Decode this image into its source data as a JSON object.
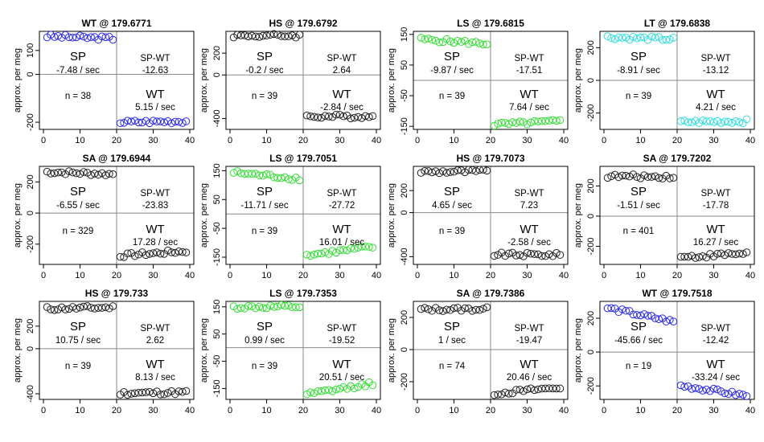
{
  "colors": {
    "blue": "#2a2ae6",
    "black": "#222222",
    "green": "#33dd33",
    "cyan": "#33dddd"
  },
  "panels": [
    {
      "title": "WT @ 179.6771",
      "ylabel": "approx. per meg",
      "color": "blue",
      "ylim": [
        -230,
        180
      ],
      "yticks": [
        -200,
        0,
        100
      ],
      "sp_label": "SP",
      "sp_rate": "-7.48 / sec",
      "diff_label": "SP-WT",
      "diff_value": "-12.63",
      "n_text": "n = 38",
      "wt_label": "WT",
      "wt_rate": "5.15 / sec",
      "sp_start": 160,
      "sp_slope": -0.5,
      "wt_start": -200,
      "wt_slope": 0.25
    },
    {
      "title": "HS @ 179.6792",
      "ylabel": "approx. per meg",
      "color": "black",
      "ylim": [
        -500,
        400
      ],
      "yticks": [
        -400,
        0,
        200
      ],
      "sp_label": "SP",
      "sp_rate": "-0.2 / sec",
      "diff_label": "SP-WT",
      "diff_value": "2.64",
      "n_text": "n = 39",
      "wt_label": "WT",
      "wt_rate": "-2.84 / sec",
      "sp_start": 360,
      "sp_slope": 0,
      "wt_start": -380,
      "wt_slope": -0.1
    },
    {
      "title": "LS @ 179.6815",
      "ylabel": "approx. per meg",
      "color": "green",
      "ylim": [
        -160,
        160
      ],
      "yticks": [
        -150,
        -50,
        50,
        150
      ],
      "sp_label": "SP",
      "sp_rate": "-9.87 / sec",
      "diff_label": "SP-WT",
      "diff_value": "-17.51",
      "n_text": "n = 39",
      "wt_label": "WT",
      "wt_rate": "7.64 / sec",
      "sp_start": 135,
      "sp_slope": -0.8,
      "wt_start": -145,
      "wt_slope": 0.6
    },
    {
      "title": "LT @ 179.6838",
      "ylabel": "approx. per meg",
      "color": "cyan",
      "ylim": [
        -300,
        300
      ],
      "yticks": [
        -200,
        0,
        200
      ],
      "sp_label": "SP",
      "sp_rate": "-8.91 / sec",
      "diff_label": "SP-WT",
      "diff_value": "-13.12",
      "n_text": "n = 39",
      "wt_label": "WT",
      "wt_rate": "4.21 / sec",
      "sp_start": 265,
      "sp_slope": -0.7,
      "wt_start": -255,
      "wt_slope": 0.3
    },
    {
      "title": "SA @ 179.6944",
      "ylabel": "approx. per meg",
      "color": "black",
      "ylim": [
        -330,
        300
      ],
      "yticks": [
        -200,
        0,
        200
      ],
      "sp_label": "SP",
      "sp_rate": "-6.55 / sec",
      "diff_label": "SP-WT",
      "diff_value": "-23.83",
      "n_text": "n = 329",
      "wt_label": "WT",
      "wt_rate": "17.28 / sec",
      "sp_start": 265,
      "sp_slope": -0.8,
      "wt_start": -275,
      "wt_slope": 1.6
    },
    {
      "title": "LS @ 179.7051",
      "ylabel": "approx. per meg",
      "color": "green",
      "ylim": [
        -175,
        165
      ],
      "yticks": [
        -150,
        -50,
        50,
        150
      ],
      "sp_label": "SP",
      "sp_rate": "-11.71 / sec",
      "diff_label": "SP-WT",
      "diff_value": "-27.72",
      "n_text": "n = 39",
      "wt_label": "WT",
      "wt_rate": "16.01 / sec",
      "sp_start": 145,
      "sp_slope": -1.2,
      "wt_start": -145,
      "wt_slope": 1.6
    },
    {
      "title": "HS @ 179.7073",
      "ylabel": "approx. per meg",
      "color": "black",
      "ylim": [
        -470,
        420
      ],
      "yticks": [
        -400,
        0,
        200
      ],
      "sp_label": "SP",
      "sp_rate": "4.65 / sec",
      "diff_label": "SP-WT",
      "diff_value": "7.23",
      "n_text": "n = 39",
      "wt_label": "WT",
      "wt_rate": "-2.58 / sec",
      "sp_start": 370,
      "sp_slope": 0.3,
      "wt_start": -380,
      "wt_slope": -0.2
    },
    {
      "title": "SA @ 179.7202",
      "ylabel": "approx. per meg",
      "color": "black",
      "ylim": [
        -320,
        330
      ],
      "yticks": [
        -200,
        0,
        200
      ],
      "sp_label": "SP",
      "sp_rate": "-1.51 / sec",
      "diff_label": "SP-WT",
      "diff_value": "-17.78",
      "n_text": "n = 401",
      "wt_label": "WT",
      "wt_rate": "16.27 / sec",
      "sp_start": 265,
      "sp_slope": -0.2,
      "wt_start": -275,
      "wt_slope": 1.6
    },
    {
      "title": "HS @ 179.733",
      "ylabel": "approx. per meg",
      "color": "black",
      "ylim": [
        -450,
        420
      ],
      "yticks": [
        -400,
        0,
        200
      ],
      "sp_label": "SP",
      "sp_rate": "10.75 / sec",
      "diff_label": "SP-WT",
      "diff_value": "2.62",
      "n_text": "n = 39",
      "wt_label": "WT",
      "wt_rate": "8.13 / sec",
      "sp_start": 355,
      "sp_slope": 0.6,
      "wt_start": -395,
      "wt_slope": 0.4
    },
    {
      "title": "LS @ 179.7353",
      "ylabel": "approx. per meg",
      "color": "green",
      "ylim": [
        -190,
        170
      ],
      "yticks": [
        -150,
        -50,
        50,
        150
      ],
      "sp_label": "SP",
      "sp_rate": "0.99 / sec",
      "diff_label": "SP-WT",
      "diff_value": "-19.52",
      "n_text": "n = 39",
      "wt_label": "WT",
      "wt_rate": "20.51 / sec",
      "sp_start": 148,
      "sp_slope": 0.1,
      "wt_start": -175,
      "wt_slope": 2.3
    },
    {
      "title": "SA @ 179.7386",
      "ylabel": "approx. per meg",
      "color": "black",
      "ylim": [
        -310,
        300
      ],
      "yticks": [
        -200,
        0,
        200
      ],
      "sp_label": "SP",
      "sp_rate": "1 / sec",
      "diff_label": "SP-WT",
      "diff_value": "-19.47",
      "n_text": "n = 74",
      "wt_label": "WT",
      "wt_rate": "20.46 / sec",
      "sp_start": 250,
      "sp_slope": 0.1,
      "wt_start": -275,
      "wt_slope": 2.1
    },
    {
      "title": "WT @ 179.7518",
      "ylabel": "approx. per meg",
      "color": "blue",
      "ylim": [
        -280,
        300
      ],
      "yticks": [
        -200,
        0,
        200
      ],
      "sp_label": "SP",
      "sp_rate": "-45.66 / sec",
      "diff_label": "SP-WT",
      "diff_value": "-12.42",
      "n_text": "n = 19",
      "wt_label": "WT",
      "wt_rate": "-33.24 / sec",
      "sp_start": 265,
      "sp_slope": -4.5,
      "wt_start": -195,
      "wt_slope": -3.3
    }
  ],
  "chart_data": {
    "type": "scatter",
    "xlim": [
      0,
      40
    ],
    "xticks": [
      0,
      10,
      20,
      30,
      40
    ],
    "grid": false,
    "layout": "3 rows x 4 columns"
  }
}
